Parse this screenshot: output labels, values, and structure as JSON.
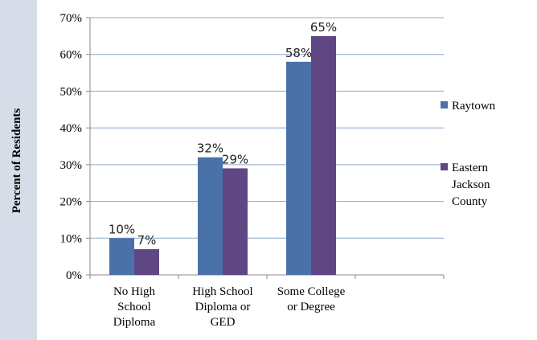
{
  "chart_data": {
    "type": "bar",
    "categories": [
      [
        "No High",
        "School",
        "Diploma"
      ],
      [
        "High School",
        "Diploma or",
        "GED"
      ],
      [
        "Some College",
        "or Degree"
      ]
    ],
    "series": [
      {
        "name": "Raytown",
        "values": [
          10,
          32,
          58
        ],
        "labels": [
          "10%",
          "32%",
          "58%"
        ],
        "color": "#4a72a9"
      },
      {
        "name": "Eastern Jackson County",
        "legend_lines": [
          "Eastern",
          "Jackson",
          "County"
        ],
        "values": [
          7,
          29,
          65
        ],
        "labels": [
          "7%",
          "29%",
          "65%"
        ],
        "color": "#5f4784"
      }
    ],
    "ylabel": "Percent of Residents",
    "ylim": [
      0,
      70
    ],
    "yticks": [
      "0%",
      "10%",
      "20%",
      "30%",
      "40%",
      "50%",
      "60%",
      "70%"
    ],
    "grid": true,
    "legend_position": "right"
  }
}
